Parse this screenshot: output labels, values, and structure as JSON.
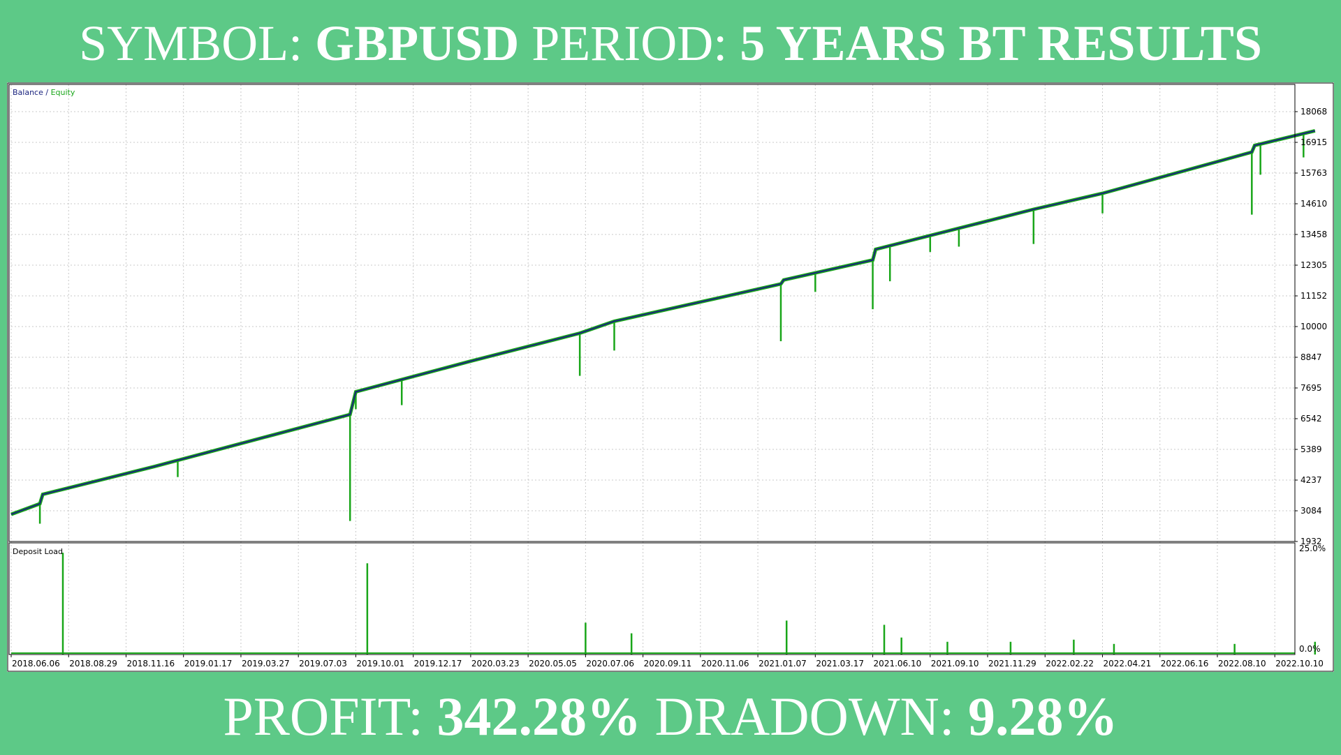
{
  "header": {
    "symbol_label": "SYMBOL:",
    "symbol_value": "GBPUSD",
    "period_label": "PERIOD:",
    "period_value": "5 YEARS BT RESULTS"
  },
  "footer": {
    "profit_label": "PROFIT:",
    "profit_value": "342.28%",
    "drawdown_label": "DRADOWN:",
    "drawdown_value": "9.28%"
  },
  "colors": {
    "background": "#5dc987",
    "balance": "#1a237e",
    "equity": "#19a619",
    "deposit_load": "#19a619",
    "grid": "#c8c8c8"
  },
  "chart_data": [
    {
      "type": "line",
      "legend": {
        "balance": "Balance",
        "separator": " / ",
        "equity": "Equity"
      },
      "ylim": [
        1932,
        18068
      ],
      "y_ticks": [
        "18068",
        "16915",
        "15763",
        "14610",
        "13458",
        "12305",
        "11152",
        "10000",
        "8847",
        "7695",
        "6542",
        "5389",
        "4237",
        "3084",
        "1932"
      ],
      "x_ticks": [
        "2018.06.06",
        "2018.08.29",
        "2018.11.16",
        "2019.01.17",
        "2019.03.27",
        "2019.07.03",
        "2019.10.01",
        "2019.12.17",
        "2020.03.23",
        "2020.05.05",
        "2020.07.06",
        "2020.09.11",
        "2020.11.06",
        "2021.01.07",
        "2021.03.17",
        "2021.06.10",
        "2021.09.10",
        "2021.11.29",
        "2022.02.22",
        "2022.04.21",
        "2022.06.16",
        "2022.08.10",
        "2022.10.10"
      ],
      "series": [
        {
          "name": "Balance",
          "points": [
            [
              0,
              2950
            ],
            [
              0.5,
              3350
            ],
            [
              0.55,
              3700
            ],
            [
              2.5,
              4750
            ],
            [
              5.9,
              6700
            ],
            [
              6.0,
              7550
            ],
            [
              8.0,
              8700
            ],
            [
              9.9,
              9750
            ],
            [
              10.5,
              10200
            ],
            [
              13.4,
              11600
            ],
            [
              13.45,
              11750
            ],
            [
              15.0,
              12500
            ],
            [
              15.05,
              12900
            ],
            [
              17.8,
              14400
            ],
            [
              19.0,
              15000
            ],
            [
              21.6,
              16550
            ],
            [
              21.65,
              16800
            ],
            [
              22.7,
              17350
            ]
          ]
        },
        {
          "name": "Equity",
          "drops": [
            [
              0.5,
              2600
            ],
            [
              2.9,
              4350
            ],
            [
              5.9,
              2700
            ],
            [
              6.0,
              6900
            ],
            [
              6.8,
              7050
            ],
            [
              9.9,
              8150
            ],
            [
              10.5,
              9100
            ],
            [
              13.4,
              9450
            ],
            [
              14.0,
              11300
            ],
            [
              15.0,
              10650
            ],
            [
              15.3,
              11700
            ],
            [
              16.0,
              12800
            ],
            [
              16.5,
              13000
            ],
            [
              17.8,
              13100
            ],
            [
              19.0,
              14250
            ],
            [
              21.6,
              14200
            ],
            [
              21.75,
              15700
            ],
            [
              22.5,
              16350
            ]
          ]
        }
      ]
    },
    {
      "type": "bar",
      "title": "Deposit Load",
      "ylim": [
        0,
        25
      ],
      "y_ticks": [
        "25.0%",
        "0.0%"
      ],
      "spikes": [
        [
          0.9,
          24.0
        ],
        [
          6.2,
          21.5
        ],
        [
          10.0,
          7.5
        ],
        [
          10.8,
          5.0
        ],
        [
          13.5,
          8.0
        ],
        [
          15.2,
          7.0
        ],
        [
          15.5,
          4.0
        ],
        [
          16.3,
          3.0
        ],
        [
          17.4,
          3.0
        ],
        [
          18.5,
          3.5
        ],
        [
          19.2,
          2.5
        ],
        [
          21.3,
          2.5
        ],
        [
          22.7,
          3.0
        ]
      ]
    }
  ]
}
